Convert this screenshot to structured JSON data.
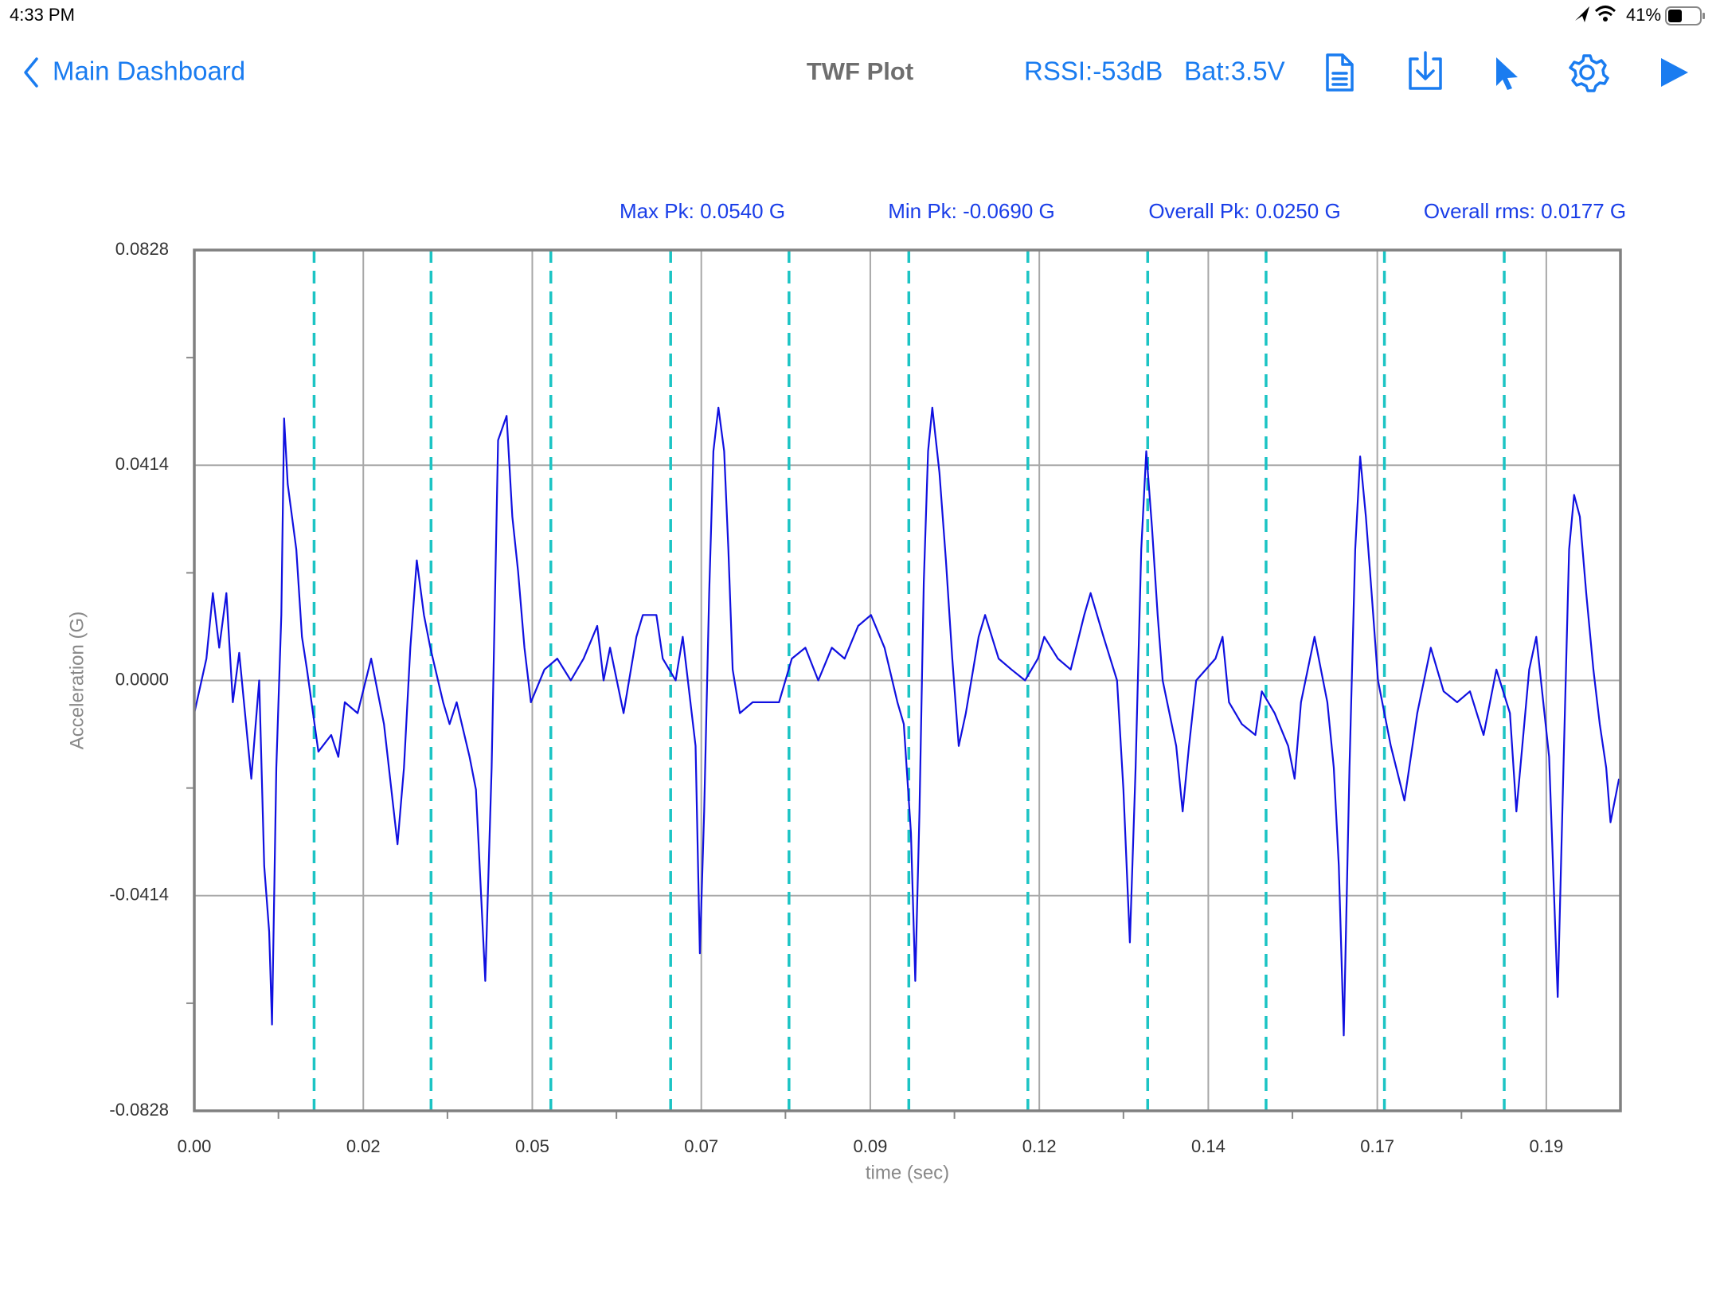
{
  "status_bar": {
    "time": "4:33 PM",
    "battery": "41%"
  },
  "nav": {
    "back": "Main Dashboard",
    "title": "TWF Plot",
    "rssi": "RSSI:-53dB",
    "battery": "Bat:3.5V"
  },
  "chart_data": {
    "type": "line",
    "x_label": "time (sec)",
    "y_label": "Acceleration (G)",
    "annotations": [
      "Max Pk: 0.0540 G",
      "Min Pk: -0.0690 G",
      "Overall Pk: 0.0250 G",
      "Overall rms: 0.0177 G"
    ],
    "xlim": [
      0,
      0.2
    ],
    "xticks": [
      {
        "value": 0,
        "label": "0.00"
      },
      {
        "value": 0.0237,
        "label": "0.02"
      },
      {
        "value": 0.0474,
        "label": "0.05"
      },
      {
        "value": 0.0711,
        "label": "0.07"
      },
      {
        "value": 0.0948,
        "label": "0.09"
      },
      {
        "value": 0.1185,
        "label": "0.12"
      },
      {
        "value": 0.1422,
        "label": "0.14"
      },
      {
        "value": 0.1659,
        "label": "0.17"
      },
      {
        "value": 0.1896,
        "label": "0.19"
      }
    ],
    "x_minor_ticks": [
      0.0118,
      0.0355,
      0.0592,
      0.0829,
      0.1066,
      0.1303,
      0.154,
      0.1777
    ],
    "ylim": [
      -0.0828,
      0.0828
    ],
    "yticks": [
      {
        "value": -0.0828,
        "label": "-0.0828"
      },
      {
        "value": -0.0414,
        "label": "-0.0414"
      },
      {
        "value": 0,
        "label": "0.0000"
      },
      {
        "value": 0.0414,
        "label": "0.0414"
      },
      {
        "value": 0.0828,
        "label": "0.0828"
      }
    ],
    "y_minor_ticks": [
      -0.0621,
      -0.0207,
      0.0207,
      0.0621
    ],
    "grid": true,
    "color": "#1010e0",
    "markers": {
      "color": "#1cc4c4",
      "values": [
        0.0168,
        0.0332,
        0.05,
        0.0668,
        0.0834,
        0.1002,
        0.1169,
        0.1337,
        0.1503,
        0.1669,
        0.1837
      ]
    },
    "x": [
      0.0,
      0.0017,
      0.0026,
      0.0035,
      0.0045,
      0.0054,
      0.0063,
      0.008,
      0.0091,
      0.0098,
      0.0105,
      0.0109,
      0.0115,
      0.0122,
      0.0126,
      0.0131,
      0.0137,
      0.0143,
      0.0151,
      0.0158,
      0.0174,
      0.0192,
      0.0202,
      0.0211,
      0.0229,
      0.0248,
      0.0266,
      0.0285,
      0.0294,
      0.0303,
      0.0312,
      0.0322,
      0.0331,
      0.0349,
      0.0358,
      0.0368,
      0.0386,
      0.0395,
      0.0408,
      0.0417,
      0.0426,
      0.0438,
      0.0446,
      0.0454,
      0.0463,
      0.0472,
      0.0491,
      0.0509,
      0.0528,
      0.0546,
      0.0565,
      0.0574,
      0.0583,
      0.0602,
      0.062,
      0.0629,
      0.0648,
      0.0657,
      0.0675,
      0.0685,
      0.0703,
      0.0709,
      0.0715,
      0.0722,
      0.0728,
      0.0735,
      0.0743,
      0.0749,
      0.0755,
      0.0765,
      0.0783,
      0.0802,
      0.082,
      0.0838,
      0.0857,
      0.0875,
      0.0894,
      0.0912,
      0.0931,
      0.0949,
      0.0968,
      0.0986,
      0.0995,
      0.1005,
      0.1011,
      0.1017,
      0.1023,
      0.1029,
      0.1035,
      0.1045,
      0.1054,
      0.1063,
      0.1072,
      0.1082,
      0.11,
      0.1109,
      0.1128,
      0.1146,
      0.1165,
      0.1183,
      0.1192,
      0.1211,
      0.1229,
      0.1248,
      0.1257,
      0.1275,
      0.1294,
      0.1303,
      0.1312,
      0.132,
      0.1328,
      0.1335,
      0.1343,
      0.1351,
      0.1358,
      0.1377,
      0.1386,
      0.1395,
      0.1405,
      0.1432,
      0.1442,
      0.1451,
      0.1469,
      0.1488,
      0.1497,
      0.1515,
      0.1534,
      0.1543,
      0.1552,
      0.1571,
      0.1589,
      0.1598,
      0.1605,
      0.1612,
      0.162,
      0.1628,
      0.1635,
      0.1643,
      0.1651,
      0.166,
      0.1678,
      0.1697,
      0.1715,
      0.1734,
      0.1752,
      0.1771,
      0.1789,
      0.1808,
      0.1826,
      0.1845,
      0.1854,
      0.1872,
      0.1882,
      0.19,
      0.1906,
      0.1912,
      0.192,
      0.1928,
      0.1935,
      0.1943,
      0.1952,
      0.1962,
      0.1971,
      0.198,
      0.1986,
      0.1998
    ],
    "values": [
      -0.0063,
      0.0042,
      0.0168,
      0.0063,
      0.0168,
      -0.0042,
      0.0053,
      -0.0189,
      0.0,
      -0.0357,
      -0.0483,
      -0.0662,
      -0.0168,
      0.0126,
      0.0504,
      0.0378,
      0.0315,
      0.0252,
      0.0084,
      0.0021,
      -0.0137,
      -0.0105,
      -0.0147,
      -0.0042,
      -0.0063,
      0.0042,
      -0.0084,
      -0.0315,
      -0.0168,
      0.0063,
      0.0231,
      0.0126,
      0.0063,
      -0.0042,
      -0.0084,
      -0.0042,
      -0.0147,
      -0.021,
      -0.0578,
      -0.0168,
      0.0462,
      0.0509,
      0.0315,
      0.021,
      0.0063,
      -0.0042,
      0.0021,
      0.0042,
      0.0,
      0.0042,
      0.0105,
      0.0,
      0.0063,
      -0.0063,
      0.0084,
      0.0126,
      0.0126,
      0.0042,
      0.0,
      0.0084,
      -0.0126,
      -0.0525,
      -0.0252,
      0.0168,
      0.0441,
      0.0525,
      0.0441,
      0.0252,
      0.0021,
      -0.0063,
      -0.0042,
      -0.0042,
      -0.0042,
      0.0042,
      0.0063,
      0.0,
      0.0063,
      0.0042,
      0.0105,
      0.0126,
      0.0063,
      -0.0042,
      -0.0084,
      -0.0294,
      -0.0578,
      -0.0252,
      0.0189,
      0.0441,
      0.0525,
      0.0399,
      0.0231,
      0.0042,
      -0.0126,
      -0.0063,
      0.0084,
      0.0126,
      0.0042,
      0.0021,
      0.0,
      0.0042,
      0.0084,
      0.0042,
      0.0021,
      0.0126,
      0.0168,
      0.0084,
      0.0,
      -0.021,
      -0.0504,
      -0.0168,
      0.0252,
      0.0441,
      0.0294,
      0.0126,
      0.0,
      -0.0126,
      -0.0252,
      -0.0126,
      0.0,
      0.0042,
      0.0084,
      -0.0042,
      -0.0084,
      -0.0105,
      -0.0021,
      -0.0063,
      -0.0126,
      -0.0189,
      -0.0042,
      0.0084,
      -0.0042,
      -0.0168,
      -0.0357,
      -0.0683,
      -0.0168,
      0.0252,
      0.0431,
      0.0315,
      0.0168,
      0.0,
      -0.0126,
      -0.0231,
      -0.0063,
      0.0063,
      -0.0021,
      -0.0042,
      -0.0021,
      -0.0105,
      0.0021,
      -0.0063,
      -0.0252,
      0.0021,
      0.0084,
      -0.0147,
      -0.0378,
      -0.0609,
      -0.0168,
      0.0252,
      0.0357,
      0.0315,
      0.0168,
      0.0021,
      -0.0084,
      -0.0168,
      -0.0273,
      -0.0189
    ]
  }
}
